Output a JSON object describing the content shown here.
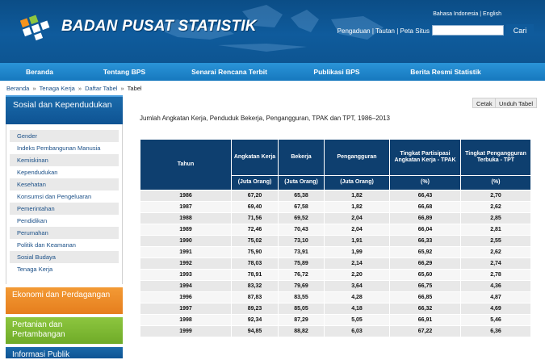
{
  "header": {
    "brand": "BADAN PUSAT STATISTIK",
    "lang_id": "Bahasa Indonesia",
    "lang_sep": "|",
    "lang_en": "English",
    "top_links": "Pengaduan | Tautan | Peta Situs",
    "search_button": "Cari",
    "search_value": ""
  },
  "nav": [
    "Beranda",
    "Tentang BPS",
    "Senarai Rencana Terbit",
    "Publikasi BPS",
    "Berita Resmi Statistik"
  ],
  "breadcrumb": {
    "items": [
      "Beranda",
      "Tenaga Kerja",
      "Daftar Tabel"
    ],
    "separator": "»",
    "current": "Tabel"
  },
  "sidebar": {
    "section_title": "Sosial dan Kependudukan",
    "items": [
      "Gender",
      "Indeks Pembangunan Manusia",
      "Kemiskinan",
      "Kependudukan",
      "Kesehatan",
      "Konsumsi dan Pengeluaran",
      "Pemerintahan",
      "Pendidikan",
      "Perumahan",
      "Politik dan Keamanan",
      "Sosial Budaya",
      "Tenaga Kerja"
    ],
    "block_orange": "Ekonomi dan Perdagangan",
    "block_green": "Pertanian dan Pertambangan",
    "block_blue": "Informasi Publik"
  },
  "actions": {
    "print": "Cetak",
    "download": "Unduh Tabel"
  },
  "table": {
    "title": "Jumlah Angkatan Kerja, Penduduk Bekerja, Pengangguran, TPAK dan TPT, 1986–2013",
    "headers": [
      "Tahun",
      "Angkatan Kerja",
      "Bekerja",
      "Pengangguran",
      "Tingkat Partisipasi Angkatan Kerja - TPAK",
      "Tingkat Pengangguran Terbuka - TPT"
    ],
    "units": [
      "(Juta Orang)",
      "(Juta Orang)",
      "(Juta Orang)",
      "(%)",
      "(%)"
    ],
    "rows": [
      [
        "1986",
        "67,20",
        "65,38",
        "1,82",
        "66,43",
        "2,70"
      ],
      [
        "1987",
        "69,40",
        "67,58",
        "1,82",
        "66,68",
        "2,62"
      ],
      [
        "1988",
        "71,56",
        "69,52",
        "2,04",
        "66,89",
        "2,85"
      ],
      [
        "1989",
        "72,46",
        "70,43",
        "2,04",
        "66,04",
        "2,81"
      ],
      [
        "1990",
        "75,02",
        "73,10",
        "1,91",
        "66,33",
        "2,55"
      ],
      [
        "1991",
        "75,90",
        "73,91",
        "1,99",
        "65,92",
        "2,62"
      ],
      [
        "1992",
        "78,03",
        "75,89",
        "2,14",
        "66,29",
        "2,74"
      ],
      [
        "1993",
        "78,91",
        "76,72",
        "2,20",
        "65,60",
        "2,78"
      ],
      [
        "1994",
        "83,32",
        "79,69",
        "3,64",
        "66,75",
        "4,36"
      ],
      [
        "1996",
        "87,83",
        "83,55",
        "4,28",
        "66,85",
        "4,87"
      ],
      [
        "1997",
        "89,23",
        "85,05",
        "4,18",
        "66,32",
        "4,69"
      ],
      [
        "1998",
        "92,34",
        "87,29",
        "5,05",
        "66,91",
        "5,46"
      ],
      [
        "1999",
        "94,85",
        "88,82",
        "6,03",
        "67,22",
        "6,36"
      ]
    ]
  },
  "colors": {
    "header": "#0f5b9c",
    "nav": "#1e86cc",
    "table_header": "#0e3f6f",
    "accent_orange": "#f39a35",
    "accent_green": "#8dc63f"
  }
}
